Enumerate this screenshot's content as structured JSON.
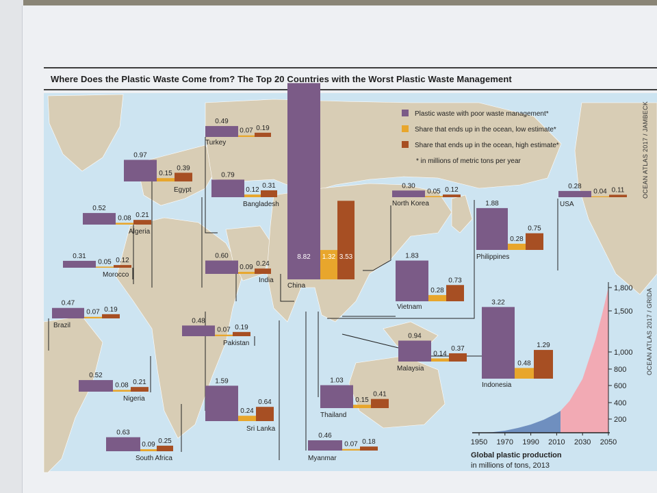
{
  "title": "Where Does the Plastic Waste Come from? The Top 20 Countries with the Worst Plastic Waste Management",
  "credits": {
    "right_top": "OCEAN ATLAS 2017 / JAMBECK",
    "right_bottom": "OCEAN ATLAS 2017 / GRIDA"
  },
  "legend": {
    "items": [
      {
        "label": "Plastic waste with poor waste management*",
        "color": "#7b5b87"
      },
      {
        "label": "Share that ends up in the ocean, low estimate*",
        "color": "#e8a62c"
      },
      {
        "label": "Share that ends up in the ocean, high estimate*",
        "color": "#a74f23"
      }
    ],
    "note": "* in millions of metric tons per year"
  },
  "colors": {
    "poor": "#7b5b87",
    "low": "#e8a62c",
    "high": "#a74f23",
    "land": "#d8cdb5",
    "water": "#cde4f1"
  },
  "chart_data": [
    {
      "type": "bar",
      "series": [
        {
          "name": "Plastic waste with poor waste management*"
        },
        {
          "name": "Share that ends up in the ocean, low estimate*"
        },
        {
          "name": "Share that ends up in the ocean, high estimate*"
        }
      ],
      "countries": [
        {
          "name": "China",
          "values": [
            "8.82",
            "1.32",
            "3.53"
          ]
        },
        {
          "name": "Indonesia",
          "values": [
            "3.22",
            "0.48",
            "1.29"
          ]
        },
        {
          "name": "Philippines",
          "values": [
            "1.88",
            "0.28",
            "0.75"
          ]
        },
        {
          "name": "Vietnam",
          "values": [
            "1.83",
            "0.28",
            "0.73"
          ]
        },
        {
          "name": "Sri Lanka",
          "values": [
            "1.59",
            "0.24",
            "0.64"
          ]
        },
        {
          "name": "Thailand",
          "values": [
            "1.03",
            "0.15",
            "0.41"
          ]
        },
        {
          "name": "Egypt",
          "values": [
            "0.97",
            "0.15",
            "0.39"
          ]
        },
        {
          "name": "Malaysia",
          "values": [
            "0.94",
            "0.14",
            "0.37"
          ]
        },
        {
          "name": "Bangladesh",
          "values": [
            "0.79",
            "0.12",
            "0.31"
          ]
        },
        {
          "name": "South Africa",
          "values": [
            "0.63",
            "0.09",
            "0.25"
          ]
        },
        {
          "name": "India",
          "values": [
            "0.60",
            "0.09",
            "0.24"
          ]
        },
        {
          "name": "Algeria",
          "values": [
            "0.52",
            "0.08",
            "0.21"
          ]
        },
        {
          "name": "Nigeria",
          "values": [
            "0.52",
            "0.08",
            "0.21"
          ]
        },
        {
          "name": "Turkey",
          "values": [
            "0.49",
            "0.07",
            "0.19"
          ]
        },
        {
          "name": "Pakistan",
          "values": [
            "0.48",
            "0.07",
            "0.19"
          ]
        },
        {
          "name": "Brazil",
          "values": [
            "0.47",
            "0.07",
            "0.19"
          ]
        },
        {
          "name": "Myanmar",
          "values": [
            "0.46",
            "0.07",
            "0.18"
          ]
        },
        {
          "name": "Morocco",
          "values": [
            "0.31",
            "0.05",
            "0.12"
          ]
        },
        {
          "name": "North Korea",
          "values": [
            "0.30",
            "0.05",
            "0.12"
          ]
        },
        {
          "name": "USA",
          "values": [
            "0.28",
            "0.04",
            "0.11"
          ]
        }
      ]
    },
    {
      "type": "area",
      "title": "Global plastic production",
      "subtitle": "in millions of tons, 2013",
      "x_ticks": [
        "1950",
        "1970",
        "1990",
        "2010",
        "2030",
        "2050"
      ],
      "y_ticks": [
        "200",
        "400",
        "600",
        "800",
        "1,000",
        "1,500",
        "1,800"
      ],
      "series": [
        {
          "segment": "historical",
          "color": "#6f8fbf",
          "x": [
            1950,
            1960,
            1970,
            1980,
            1990,
            2000,
            2010,
            2013
          ],
          "y": [
            2,
            8,
            30,
            70,
            120,
            190,
            270,
            300
          ]
        },
        {
          "segment": "projected",
          "color": "#f2aab4",
          "x": [
            2013,
            2020,
            2030,
            2040,
            2045,
            2050
          ],
          "y": [
            300,
            420,
            680,
            1150,
            1450,
            1800
          ]
        }
      ]
    }
  ]
}
